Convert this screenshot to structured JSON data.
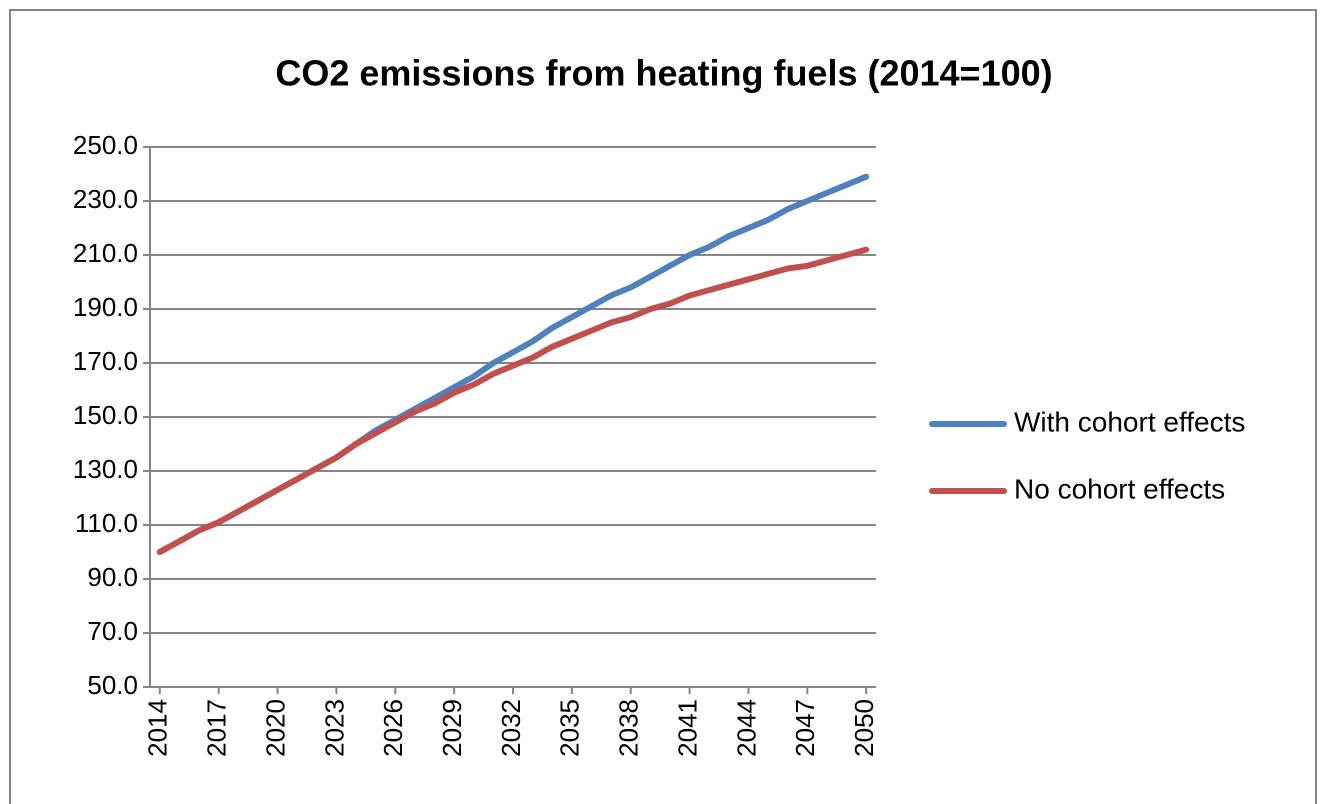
{
  "chart_data": {
    "type": "line",
    "title": "CO2 emissions from heating fuels (2014=100)",
    "x": [
      2014,
      2015,
      2016,
      2017,
      2018,
      2019,
      2020,
      2021,
      2022,
      2023,
      2024,
      2025,
      2026,
      2027,
      2028,
      2029,
      2030,
      2031,
      2032,
      2033,
      2034,
      2035,
      2036,
      2037,
      2038,
      2039,
      2040,
      2041,
      2042,
      2043,
      2044,
      2045,
      2046,
      2047,
      2048,
      2049,
      2050
    ],
    "series": [
      {
        "name": "With cohort effects",
        "color": "#4f81bd",
        "values": [
          100,
          104,
          108,
          111,
          115,
          119,
          123,
          127,
          131,
          135,
          140,
          145,
          149,
          153,
          157,
          161,
          165,
          170,
          174,
          178,
          183,
          187,
          191,
          195,
          198,
          202,
          206,
          210,
          213,
          217,
          220,
          223,
          227,
          230,
          233,
          236,
          239
        ]
      },
      {
        "name": "No cohort effects",
        "color": "#c0504d",
        "values": [
          100,
          104,
          108,
          111,
          115,
          119,
          123,
          127,
          131,
          135,
          140,
          144,
          148,
          152,
          155,
          159,
          162,
          166,
          169,
          172,
          176,
          179,
          182,
          185,
          187,
          190,
          192,
          195,
          197,
          199,
          201,
          203,
          205,
          206,
          208,
          210,
          212
        ]
      }
    ],
    "xlim": [
      2013.5,
      2050.5
    ],
    "xticks": [
      2014,
      2017,
      2020,
      2023,
      2026,
      2029,
      2032,
      2035,
      2038,
      2041,
      2044,
      2047,
      2050
    ],
    "ylim": [
      50,
      250
    ],
    "yticks": [
      {
        "value": 50,
        "label": "50.0"
      },
      {
        "value": 70,
        "label": "70.0"
      },
      {
        "value": 90,
        "label": "90.0"
      },
      {
        "value": 110,
        "label": "110.0"
      },
      {
        "value": 130,
        "label": "130.0"
      },
      {
        "value": 150,
        "label": "150.0"
      },
      {
        "value": 170,
        "label": "170.0"
      },
      {
        "value": 190,
        "label": "190.0"
      },
      {
        "value": 210,
        "label": "210.0"
      },
      {
        "value": 230,
        "label": "230.0"
      },
      {
        "value": 250,
        "label": "250.0"
      }
    ],
    "grid": true,
    "legend": "right"
  }
}
